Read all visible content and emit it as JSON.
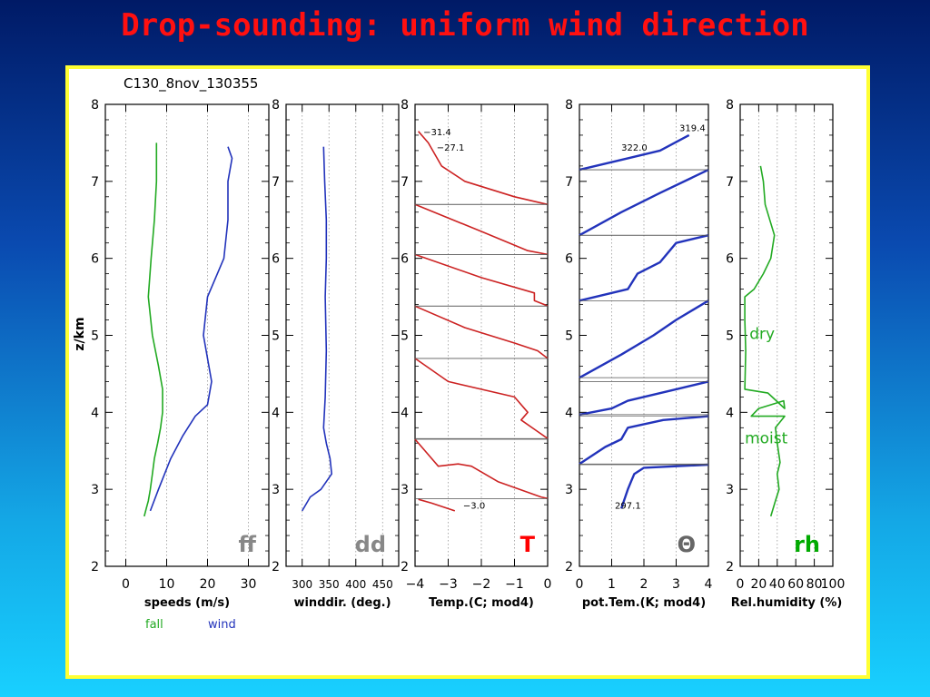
{
  "slide": {
    "title": "Drop-sounding:  uniform wind direction"
  },
  "figure": {
    "subtitle": "C130_8nov_130355",
    "ylabel": "z/km",
    "yticks": [
      "2",
      "3",
      "4",
      "5",
      "6",
      "7",
      "8"
    ],
    "ylim": [
      2,
      8
    ]
  },
  "colors": {
    "title": "#ff1010",
    "panel_border": "#ffff33",
    "green": "#22aa22",
    "blue": "#2233bb",
    "red": "#cc2222",
    "gray_label": "#888888"
  },
  "chart_data": [
    {
      "type": "line",
      "xlabel": "speeds (m/s)",
      "xticks": [
        "0",
        "10",
        "20",
        "30"
      ],
      "xlim": [
        -5,
        35
      ],
      "ylim": [
        2,
        8
      ],
      "big_label": "ff",
      "legend": [
        "fall",
        "wind"
      ],
      "series": [
        {
          "name": "fall",
          "color": "#22aa22",
          "points": [
            [
              4.5,
              2.65
            ],
            [
              5,
              2.75
            ],
            [
              5.5,
              2.85
            ],
            [
              6,
              3.0
            ],
            [
              6.5,
              3.2
            ],
            [
              7,
              3.4
            ],
            [
              7.8,
              3.6
            ],
            [
              8.5,
              3.8
            ],
            [
              9,
              4.0
            ],
            [
              9,
              4.3
            ],
            [
              8,
              4.6
            ],
            [
              6.5,
              5.0
            ],
            [
              5.5,
              5.5
            ],
            [
              6.2,
              6.0
            ],
            [
              7,
              6.5
            ],
            [
              7.5,
              7.0
            ],
            [
              7.5,
              7.5
            ]
          ]
        },
        {
          "name": "wind",
          "color": "#2233bb",
          "points": [
            [
              6,
              2.72
            ],
            [
              8,
              3.0
            ],
            [
              11,
              3.4
            ],
            [
              14,
              3.7
            ],
            [
              17,
              3.95
            ],
            [
              20,
              4.1
            ],
            [
              21,
              4.4
            ],
            [
              19,
              5.0
            ],
            [
              20,
              5.5
            ],
            [
              22,
              5.75
            ],
            [
              24,
              6.0
            ],
            [
              25,
              6.5
            ],
            [
              25,
              7.0
            ],
            [
              26,
              7.3
            ],
            [
              25,
              7.45
            ]
          ]
        }
      ]
    },
    {
      "type": "line",
      "xlabel": "winddir. (deg.)",
      "xticks": [
        "300",
        "350",
        "400",
        "450"
      ],
      "xlim": [
        270,
        480
      ],
      "ylim": [
        2,
        8
      ],
      "big_label": "dd",
      "series": [
        {
          "name": "",
          "color": "#2233bb",
          "points": [
            [
              300,
              2.72
            ],
            [
              315,
              2.9
            ],
            [
              335,
              3.0
            ],
            [
              355,
              3.2
            ],
            [
              352,
              3.4
            ],
            [
              345,
              3.6
            ],
            [
              340,
              3.8
            ],
            [
              343,
              4.2
            ],
            [
              345,
              4.8
            ],
            [
              343,
              5.5
            ],
            [
              345,
              6.0
            ],
            [
              345,
              6.5
            ],
            [
              342,
              7.0
            ],
            [
              340,
              7.45
            ]
          ]
        }
      ]
    },
    {
      "type": "line",
      "xlabel": "Temp.(C; mod4)",
      "xticks": [
        "−4",
        "−3",
        "−2",
        "−1",
        "0"
      ],
      "xlim": [
        -4,
        0
      ],
      "ylim": [
        2,
        8
      ],
      "big_label": "T",
      "annotations": [
        [
          "−31.4",
          -3.75,
          7.6
        ],
        [
          "−27.1",
          -3.35,
          7.4
        ],
        [
          "−3.0",
          -2.55,
          2.75
        ]
      ],
      "series": [
        {
          "name": "",
          "color": "#cc2222",
          "points": [
            [
              -2.8,
              2.72
            ],
            [
              -3.5,
              2.82
            ],
            [
              -3.9,
              2.87
            ]
          ]
        },
        {
          "name": "",
          "color": "#cc2222",
          "points": [
            [
              -4,
              3.65
            ],
            [
              -3.3,
              3.3
            ],
            [
              -2.7,
              3.33
            ],
            [
              -2.3,
              3.3
            ],
            [
              -1.5,
              3.1
            ],
            [
              -0.2,
              2.9
            ],
            [
              0,
              2.88
            ]
          ]
        },
        {
          "name": "",
          "color": "#cc2222",
          "points": [
            [
              -4,
              4.7
            ],
            [
              -3.0,
              4.4
            ],
            [
              -1.0,
              4.2
            ],
            [
              -0.6,
              4.0
            ],
            [
              -0.8,
              3.9
            ],
            [
              -0.3,
              3.75
            ],
            [
              0,
              3.66
            ]
          ]
        },
        {
          "name": "",
          "color": "#cc2222",
          "points": [
            [
              -4,
              5.38
            ],
            [
              -2.5,
              5.1
            ],
            [
              -1.0,
              4.9
            ],
            [
              -0.3,
              4.8
            ],
            [
              0,
              4.7
            ]
          ]
        },
        {
          "name": "",
          "color": "#cc2222",
          "points": [
            [
              -4,
              6.05
            ],
            [
              -2.0,
              5.75
            ],
            [
              -0.4,
              5.55
            ],
            [
              -0.4,
              5.45
            ],
            [
              -0.1,
              5.4
            ],
            [
              0,
              5.38
            ]
          ]
        },
        {
          "name": "",
          "color": "#cc2222",
          "points": [
            [
              -4,
              6.7
            ],
            [
              -2.0,
              6.35
            ],
            [
              -0.6,
              6.1
            ],
            [
              0,
              6.05
            ]
          ]
        },
        {
          "name": "",
          "color": "#cc2222",
          "points": [
            [
              -3.9,
              7.65
            ],
            [
              -3.6,
              7.5
            ],
            [
              -3.2,
              7.2
            ],
            [
              -2.5,
              7.0
            ],
            [
              -1.0,
              6.8
            ],
            [
              0,
              6.7
            ]
          ]
        }
      ]
    },
    {
      "type": "line",
      "xlabel": "pot.Tem.(K; mod4)",
      "xticks": [
        "0",
        "1",
        "2",
        "3",
        "4"
      ],
      "xlim": [
        0,
        4
      ],
      "ylim": [
        2,
        8
      ],
      "big_label": "Θ",
      "annotations": [
        [
          "319.4",
          3.1,
          7.65
        ],
        [
          "322.0",
          1.3,
          7.4
        ],
        [
          "297.1",
          1.1,
          2.75
        ]
      ],
      "series": [
        {
          "name": "",
          "color": "#2233bb",
          "points": [
            [
              1.3,
              2.75
            ],
            [
              1.5,
              3.0
            ],
            [
              1.6,
              3.1
            ],
            [
              1.7,
              3.2
            ],
            [
              2.0,
              3.28
            ],
            [
              4,
              3.32
            ]
          ]
        },
        {
          "name": "",
          "color": "#2233bb",
          "points": [
            [
              0,
              3.33
            ],
            [
              0.8,
              3.55
            ],
            [
              1.3,
              3.65
            ],
            [
              1.5,
              3.8
            ],
            [
              2.6,
              3.9
            ],
            [
              4,
              3.95
            ]
          ]
        },
        {
          "name": "",
          "color": "#2233bb",
          "points": [
            [
              0,
              3.97
            ],
            [
              1.0,
              4.05
            ],
            [
              1.5,
              4.15
            ],
            [
              3.0,
              4.3
            ],
            [
              4,
              4.4
            ]
          ]
        },
        {
          "name": "",
          "color": "#2233bb",
          "points": [
            [
              0,
              4.45
            ],
            [
              1.3,
              4.75
            ],
            [
              2.3,
              5.0
            ],
            [
              3.0,
              5.2
            ],
            [
              4,
              5.45
            ]
          ]
        },
        {
          "name": "",
          "color": "#2233bb",
          "points": [
            [
              0,
              5.45
            ],
            [
              1.5,
              5.6
            ],
            [
              1.8,
              5.8
            ],
            [
              2.5,
              5.95
            ],
            [
              3.0,
              6.2
            ],
            [
              4,
              6.3
            ]
          ]
        },
        {
          "name": "",
          "color": "#2233bb",
          "points": [
            [
              0,
              6.3
            ],
            [
              1.3,
              6.6
            ],
            [
              2.5,
              6.85
            ],
            [
              4,
              7.15
            ]
          ]
        },
        {
          "name": "",
          "color": "#2233bb",
          "points": [
            [
              0,
              7.15
            ],
            [
              1.5,
              7.3
            ],
            [
              2.5,
              7.4
            ],
            [
              3.4,
              7.6
            ]
          ]
        }
      ]
    },
    {
      "type": "line",
      "xlabel": "Rel.humidity (%)",
      "xticks": [
        "0",
        "20",
        "40",
        "60",
        "80",
        "100"
      ],
      "xlim": [
        0,
        100
      ],
      "ylim": [
        2,
        8
      ],
      "big_label": "rh",
      "annotations": [
        [
          "dry",
          10,
          4.95
        ],
        [
          "moist",
          5,
          3.6
        ]
      ],
      "series": [
        {
          "name": "",
          "color": "#22aa22",
          "points": [
            [
              33,
              2.65
            ],
            [
              38,
              2.85
            ],
            [
              42,
              3.0
            ],
            [
              40,
              3.2
            ],
            [
              43,
              3.35
            ],
            [
              40,
              3.6
            ],
            [
              38,
              3.8
            ],
            [
              48,
              3.95
            ],
            [
              12,
              3.95
            ],
            [
              20,
              4.05
            ],
            [
              47,
              4.15
            ],
            [
              48,
              4.05
            ],
            [
              30,
              4.25
            ],
            [
              5,
              4.3
            ],
            [
              6,
              4.8
            ],
            [
              5,
              5.2
            ],
            [
              5,
              5.5
            ],
            [
              15,
              5.6
            ],
            [
              25,
              5.8
            ],
            [
              33,
              6.0
            ],
            [
              37,
              6.3
            ],
            [
              32,
              6.5
            ],
            [
              27,
              6.7
            ],
            [
              25,
              7.0
            ],
            [
              22,
              7.2
            ]
          ]
        }
      ]
    }
  ]
}
